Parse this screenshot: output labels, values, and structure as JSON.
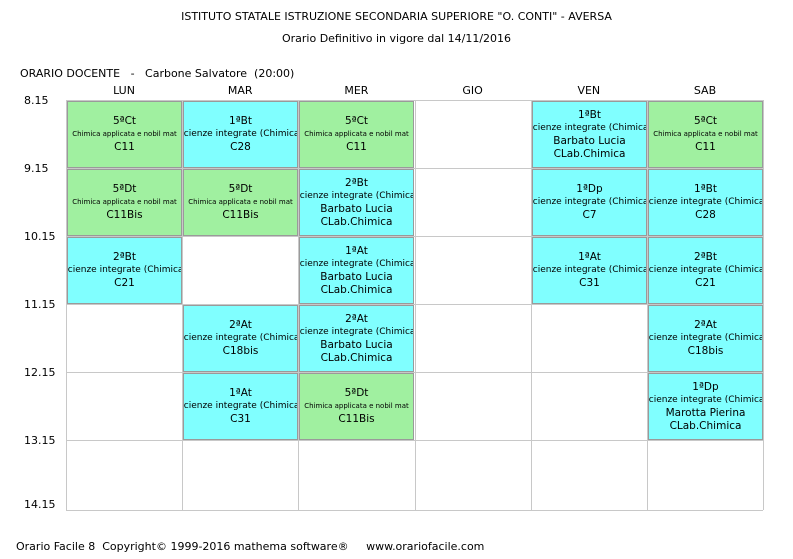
{
  "header": {
    "school": "ISTITUTO STATALE ISTRUZIONE SECONDARIA SUPERIORE \"O. CONTI\" - AVERSA",
    "subtitle": "Orario Definitivo in vigore dal 14/11/2016",
    "teacher_line": "ORARIO DOCENTE   -   Carbone Salvatore  (20:00)"
  },
  "days": [
    "LUN",
    "MAR",
    "MER",
    "GIO",
    "VEN",
    "SAB"
  ],
  "times": [
    "8.15",
    "9.15",
    "10.15",
    "11.15",
    "12.15",
    "13.15",
    "14.15"
  ],
  "colors": {
    "lab": "#80ffff",
    "chimica_applicata": "#a0f0a0",
    "grid": "#c8c8c8"
  },
  "cells": [
    {
      "day": 0,
      "slot": 0,
      "color": "green",
      "cls": "5ªCt",
      "subject": "Chimica applicata e nobil mat",
      "teacher": "",
      "room": "C11"
    },
    {
      "day": 1,
      "slot": 0,
      "color": "cyan",
      "cls": "1ªBt",
      "subject": "Scienze integrate  (Chimica)",
      "teacher": "",
      "room": "C28"
    },
    {
      "day": 2,
      "slot": 0,
      "color": "green",
      "cls": "5ªCt",
      "subject": "Chimica applicata e nobil mat",
      "teacher": "",
      "room": "C11"
    },
    {
      "day": 4,
      "slot": 0,
      "color": "cyan",
      "cls": "1ªBt",
      "subject": "Scienze integrate  (Chimica)",
      "teacher": "Barbato Lucia",
      "room": "CLab.Chimica"
    },
    {
      "day": 5,
      "slot": 0,
      "color": "green",
      "cls": "5ªCt",
      "subject": "Chimica applicata e nobil mat",
      "teacher": "",
      "room": "C11"
    },
    {
      "day": 0,
      "slot": 1,
      "color": "green",
      "cls": "5ªDt",
      "subject": "Chimica applicata e nobil mat",
      "teacher": "",
      "room": "C11Bis"
    },
    {
      "day": 1,
      "slot": 1,
      "color": "green",
      "cls": "5ªDt",
      "subject": "Chimica applicata e nobil mat",
      "teacher": "",
      "room": "C11Bis"
    },
    {
      "day": 2,
      "slot": 1,
      "color": "cyan",
      "cls": "2ªBt",
      "subject": "Scienze integrate  (Chimica)",
      "teacher": "Barbato Lucia",
      "room": "CLab.Chimica"
    },
    {
      "day": 4,
      "slot": 1,
      "color": "cyan",
      "cls": "1ªDp",
      "subject": "Scienze integrate  (Chimica)",
      "teacher": "",
      "room": "C7"
    },
    {
      "day": 5,
      "slot": 1,
      "color": "cyan",
      "cls": "1ªBt",
      "subject": "Scienze integrate  (Chimica)",
      "teacher": "",
      "room": "C28"
    },
    {
      "day": 0,
      "slot": 2,
      "color": "cyan",
      "cls": "2ªBt",
      "subject": "Scienze integrate  (Chimica)",
      "teacher": "",
      "room": "C21"
    },
    {
      "day": 2,
      "slot": 2,
      "color": "cyan",
      "cls": "1ªAt",
      "subject": "Scienze integrate  (Chimica)",
      "teacher": "Barbato Lucia",
      "room": "CLab.Chimica"
    },
    {
      "day": 4,
      "slot": 2,
      "color": "cyan",
      "cls": "1ªAt",
      "subject": "Scienze integrate  (Chimica)",
      "teacher": "",
      "room": "C31"
    },
    {
      "day": 5,
      "slot": 2,
      "color": "cyan",
      "cls": "2ªBt",
      "subject": "Scienze integrate  (Chimica)",
      "teacher": "",
      "room": "C21"
    },
    {
      "day": 1,
      "slot": 3,
      "color": "cyan",
      "cls": "2ªAt",
      "subject": "Scienze integrate  (Chimica)",
      "teacher": "",
      "room": "C18bis"
    },
    {
      "day": 2,
      "slot": 3,
      "color": "cyan",
      "cls": "2ªAt",
      "subject": "Scienze integrate  (Chimica)",
      "teacher": "Barbato Lucia",
      "room": "CLab.Chimica"
    },
    {
      "day": 5,
      "slot": 3,
      "color": "cyan",
      "cls": "2ªAt",
      "subject": "Scienze integrate  (Chimica)",
      "teacher": "",
      "room": "C18bis"
    },
    {
      "day": 1,
      "slot": 4,
      "color": "cyan",
      "cls": "1ªAt",
      "subject": "Scienze integrate  (Chimica)",
      "teacher": "",
      "room": "C31"
    },
    {
      "day": 2,
      "slot": 4,
      "color": "green",
      "cls": "5ªDt",
      "subject": "Chimica applicata e nobil mat",
      "teacher": "",
      "room": "C11Bis"
    },
    {
      "day": 5,
      "slot": 4,
      "color": "cyan",
      "cls": "1ªDp",
      "subject": "Scienze integrate  (Chimica)",
      "teacher": "Marotta Pierina",
      "room": "CLab.Chimica"
    }
  ],
  "footer": "Orario Facile 8  Copyright© 1999-2016 mathema software®     www.orariofacile.com"
}
